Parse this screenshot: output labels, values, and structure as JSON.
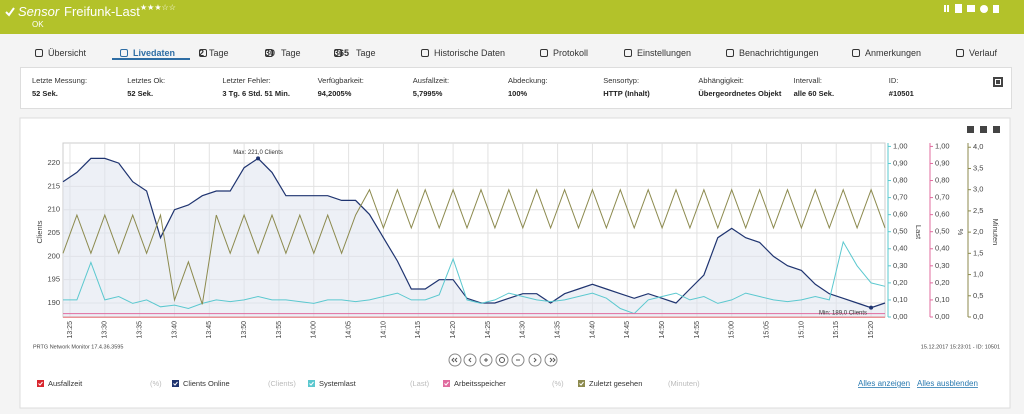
{
  "header": {
    "prefix": "Sensor",
    "title": "Freifunk-Last",
    "status": "OK"
  },
  "tabs": [
    {
      "text": "Übersicht"
    },
    {
      "text": "Livedaten"
    },
    {
      "number": "2",
      "text": "Tage"
    },
    {
      "number": "30",
      "text": "Tage"
    },
    {
      "number": "365",
      "text": "Tage"
    },
    {
      "text": "Historische Daten"
    },
    {
      "text": "Protokoll"
    },
    {
      "text": "Einstellungen"
    },
    {
      "text": "Benachrichtigungen"
    },
    {
      "text": "Anmerkungen"
    },
    {
      "text": "Verlauf"
    }
  ],
  "info": [
    {
      "label": "Letzte Messung:",
      "value": "52 Sek."
    },
    {
      "label": "Letztes Ok:",
      "value": "52 Sek."
    },
    {
      "label": "Letzter Fehler:",
      "value": "3 Tg. 6 Std. 51 Min."
    },
    {
      "label": "Verfügbarkeit:",
      "value": "94,2005%"
    },
    {
      "label": "Ausfallzeit:",
      "value": "5,7995%"
    },
    {
      "label": "Abdeckung:",
      "value": "100%"
    },
    {
      "label": "Sensortyp:",
      "value": "HTTP (Inhalt)"
    },
    {
      "label": "Abhängigkeit:",
      "value": "Übergeordnetes Objekt"
    },
    {
      "label": "Intervall:",
      "value": "alle 60 Sek."
    },
    {
      "label": "ID:",
      "value": "#10501"
    }
  ],
  "chart": {
    "type": "line",
    "x": [
      "13:24",
      "13:26",
      "13:28",
      "13:30",
      "13:32",
      "13:34",
      "13:36",
      "13:38",
      "13:40",
      "13:42",
      "13:44",
      "13:46",
      "13:48",
      "13:50",
      "13:52",
      "13:54",
      "13:56",
      "13:58",
      "14:00",
      "14:02",
      "14:04",
      "14:06",
      "14:08",
      "14:10",
      "14:12",
      "14:14",
      "14:16",
      "14:18",
      "14:20",
      "14:22",
      "14:24",
      "14:26",
      "14:28",
      "14:30",
      "14:32",
      "14:34",
      "14:36",
      "14:38",
      "14:40",
      "14:42",
      "14:44",
      "14:46",
      "14:48",
      "14:50",
      "14:52",
      "14:54",
      "14:56",
      "14:58",
      "15:00",
      "15:02",
      "15:04",
      "15:06",
      "15:08",
      "15:10",
      "15:12",
      "15:14",
      "15:16",
      "15:18",
      "15:20",
      "15:22"
    ],
    "xlim": [
      "13:24",
      "15:22"
    ],
    "xticks": [
      "13:25",
      "13:30",
      "13:35",
      "13:40",
      "13:45",
      "13:50",
      "13:55",
      "14:00",
      "14:05",
      "14:10",
      "14:15",
      "14:20",
      "14:25",
      "14:30",
      "14:35",
      "14:40",
      "14:45",
      "14:50",
      "14:55",
      "15:00",
      "15:05",
      "15:10",
      "15:15",
      "15:20"
    ],
    "axes": [
      {
        "title": "Clients",
        "lim": [
          187,
          224.3
        ],
        "ticks": [
          190,
          195,
          200,
          205,
          210,
          215,
          220
        ],
        "color": "#888888"
      },
      {
        "title": "Last",
        "lim": [
          0,
          1.02
        ],
        "color": "#5bc8cf",
        "ticks": [
          {
            "value": 0,
            "label": "0,00"
          },
          {
            "value": 0.1,
            "label": "0,10"
          },
          {
            "value": 0.2,
            "label": "0,20"
          },
          {
            "value": 0.3,
            "label": "0,30"
          },
          {
            "value": 0.4,
            "label": "0,40"
          },
          {
            "value": 0.5,
            "label": "0,50"
          },
          {
            "value": 0.6,
            "label": "0,60"
          },
          {
            "value": 0.7,
            "label": "0,70"
          },
          {
            "value": 0.8,
            "label": "0,80"
          },
          {
            "value": 0.9,
            "label": "0,90"
          },
          {
            "value": 1,
            "label": "1,00"
          }
        ]
      },
      {
        "title": "%",
        "lim": [
          0,
          1.02
        ],
        "color": "#e06c9f",
        "ticks": [
          {
            "value": 0,
            "label": "0,00"
          },
          {
            "value": 0.1,
            "label": "0,10"
          },
          {
            "value": 0.2,
            "label": "0,20"
          },
          {
            "value": 0.3,
            "label": "0,30"
          },
          {
            "value": 0.4,
            "label": "0,40"
          },
          {
            "value": 0.5,
            "label": "0,50"
          },
          {
            "value": 0.6,
            "label": "0,60"
          },
          {
            "value": 0.7,
            "label": "0,70"
          },
          {
            "value": 0.8,
            "label": "0,80"
          },
          {
            "value": 0.9,
            "label": "0,90"
          },
          {
            "value": 1,
            "label": "1,00"
          }
        ]
      },
      {
        "title": "Minuten",
        "lim": [
          0,
          4.1
        ],
        "color": "#8c8a4e",
        "ticks": [
          {
            "value": 0,
            "label": "0,0"
          },
          {
            "value": 0.5,
            "label": "0,5"
          },
          {
            "value": 1,
            "label": "1,0"
          },
          {
            "value": 1.5,
            "label": "1,5"
          },
          {
            "value": 2,
            "label": "2,0"
          },
          {
            "value": 2.5,
            "label": "2,5"
          },
          {
            "value": 3,
            "label": "3,0"
          },
          {
            "value": 3.5,
            "label": "3,5"
          },
          {
            "value": 4,
            "label": "4,0"
          }
        ]
      }
    ],
    "series": [
      {
        "name": "Ausfallzeit",
        "unit": "(%)",
        "color": "#d9262e",
        "axis": 2,
        "values": [
          0,
          0,
          0,
          0,
          0,
          0,
          0,
          0,
          0,
          0,
          0,
          0,
          0,
          0,
          0,
          0,
          0,
          0,
          0,
          0,
          0,
          0,
          0,
          0,
          0,
          0,
          0,
          0,
          0,
          0,
          0,
          0,
          0,
          0,
          0,
          0,
          0,
          0,
          0,
          0,
          0,
          0,
          0,
          0,
          0,
          0,
          0,
          0,
          0,
          0,
          0,
          0,
          0,
          0,
          0,
          0,
          0,
          0,
          0,
          0
        ]
      },
      {
        "name": "Clients Online",
        "unit": "(Clients)",
        "color": "#1f3470",
        "axis": 0,
        "area": true,
        "values": [
          216,
          218,
          221,
          221,
          220,
          216,
          214,
          204,
          210,
          211,
          213,
          214,
          214,
          219,
          221,
          218,
          213,
          213,
          213,
          213,
          212,
          212,
          209,
          204,
          199,
          193,
          193,
          195,
          195,
          191,
          190,
          190,
          191,
          192,
          192,
          190,
          192,
          193,
          194,
          193,
          192,
          191,
          192,
          191,
          190,
          193,
          196,
          204,
          206,
          204,
          203,
          200,
          198,
          197,
          194,
          192,
          191,
          190,
          189,
          190
        ]
      },
      {
        "name": "Systemlast",
        "unit": "(Last)",
        "color": "#5bc8cf",
        "axis": 1,
        "values": [
          0.1,
          0.1,
          0.32,
          0.1,
          0.12,
          0.08,
          0.1,
          0.06,
          0.07,
          0.05,
          0.08,
          0.1,
          0.09,
          0.1,
          0.12,
          0.1,
          0.1,
          0.09,
          0.08,
          0.1,
          0.1,
          0.09,
          0.1,
          0.12,
          0.14,
          0.1,
          0.1,
          0.13,
          0.34,
          0.1,
          0.08,
          0.1,
          0.14,
          0.12,
          0.1,
          0.09,
          0.1,
          0.12,
          0.14,
          0.11,
          0.05,
          0.02,
          0.1,
          0.12,
          0.14,
          0.1,
          0.12,
          0.08,
          0.1,
          0.14,
          0.12,
          0.1,
          0.09,
          0.1,
          0.12,
          0.1,
          0.44,
          0.3,
          0.2,
          0.18
        ]
      },
      {
        "name": "Arbeitsspeicher",
        "unit": "(%)",
        "color": "#e06c9f",
        "axis": 2,
        "values": [
          0.02,
          0.02,
          0.02,
          0.02,
          0.02,
          0.02,
          0.02,
          0.02,
          0.02,
          0.02,
          0.02,
          0.02,
          0.02,
          0.02,
          0.02,
          0.02,
          0.02,
          0.02,
          0.02,
          0.02,
          0.02,
          0.02,
          0.02,
          0.02,
          0.02,
          0.02,
          0.02,
          0.02,
          0.02,
          0.02,
          0.02,
          0.02,
          0.02,
          0.02,
          0.02,
          0.02,
          0.02,
          0.02,
          0.02,
          0.02,
          0.02,
          0.02,
          0.02,
          0.02,
          0.02,
          0.02,
          0.02,
          0.02,
          0.02,
          0.02,
          0.02,
          0.02,
          0.02,
          0.02,
          0.02,
          0.02,
          0.02,
          0.02,
          0.02,
          0.02
        ]
      },
      {
        "name": "Zuletzt gesehen",
        "unit": "(Minuten)",
        "color": "#8c8a4e",
        "axis": 3,
        "values": [
          1.5,
          2.4,
          1.5,
          2.4,
          1.5,
          2.4,
          1.5,
          2.4,
          0.4,
          1.3,
          0.3,
          2.4,
          1.5,
          2.4,
          1.5,
          2.4,
          1.5,
          2.4,
          1.5,
          2.4,
          1.5,
          2.4,
          3.0,
          2.1,
          3.0,
          2.1,
          3.0,
          2.1,
          3.0,
          2.1,
          3.0,
          2.1,
          3.0,
          2.1,
          3.0,
          2.1,
          3.0,
          2.1,
          3.0,
          2.1,
          3.0,
          2.1,
          3.0,
          2.1,
          3.0,
          2.1,
          3.0,
          2.1,
          3.0,
          2.1,
          3.0,
          2.1,
          3.0,
          2.1,
          3.0,
          2.1,
          3.0,
          2.1,
          3.0,
          2.1
        ]
      }
    ],
    "annotations": [
      {
        "text": "Max: 221,0 Clients",
        "x": "13:52",
        "value": 221
      },
      {
        "text": "Min: 189,0 Clients",
        "x": "15:20",
        "value": 189
      }
    ],
    "footer_left": "PRTG Network Monitor 17.4.36.3595",
    "footer_right": "15.12.2017 15:23:01 - ID: 10501",
    "links": [
      "Alles anzeigen",
      "Alles ausblenden"
    ]
  }
}
